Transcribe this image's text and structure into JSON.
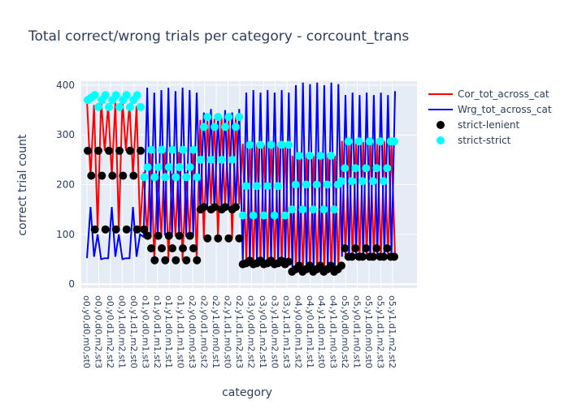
{
  "chart_data": {
    "type": "line",
    "title": "Total correct/wrong trials per category - corcount_trans",
    "xlabel": "category",
    "ylabel": "correct trial count",
    "ylim": [
      -8,
      408
    ],
    "yticks": [
      0,
      100,
      200,
      300,
      400
    ],
    "grid": true,
    "legend_position": "top-right",
    "colors": {
      "cor": "#ff0000",
      "wrg": "#0000ff",
      "strict_lenient": "#000000",
      "strict_strict": "#00ffff",
      "plot_bg": "#e5ecf6",
      "grid": "#ffffff",
      "text": "#2a3f5f"
    },
    "x_tick_labels": [
      "o0,y0,d0,m0,st0",
      "o0,y0,d0,m2,st3",
      "o0,y0,d1,m2,st2",
      "o0,y1,d0,m2,st1",
      "o0,y1,d1,m2,st0",
      "o1,y0,d0,m1,st3",
      "o1,y0,d1,m1,st2",
      "o1,y1,d0,m1,st1",
      "o1,y1,d1,m1,st0",
      "o2,y0,d0,m0,st3",
      "o2,y0,d1,m0,st2",
      "o2,y1,d0,m0,st1",
      "o2,y1,d1,m0,st0",
      "o2,y1,d1,m2,st3",
      "o3,y0,d0,m2,st2",
      "o3,y0,d1,m2,st1",
      "o3,y1,d0,m2,st0",
      "o3,y1,d1,m1,st3",
      "o4,y0,d0,m1,st2",
      "o4,y0,d1,m1,st1",
      "o4,y1,d0,m1,st0",
      "o4,y1,d1,m0,st3",
      "o5,y0,d0,m0,st2",
      "o5,y0,d1,m0,st1",
      "o5,y1,d0,m0,st0",
      "o5,y1,d1,m2,st3",
      "o5,y1,d1,m2,st2"
    ],
    "blocks": [
      {
        "n": 16,
        "cor": [
          [
            370,
            215
          ],
          [
            360,
            110
          ],
          [
            370,
            268
          ],
          [
            360,
            218
          ],
          [
            365,
            110
          ],
          [
            370,
            268
          ],
          [
            362,
            218
          ],
          [
            358,
            112
          ]
        ],
        "wrg": [
          [
            52,
            155
          ],
          [
            55,
            100
          ],
          [
            50,
            52
          ],
          [
            52,
            155
          ],
          [
            55,
            100
          ],
          [
            50,
            52
          ],
          [
            52,
            155
          ],
          [
            55,
            100
          ]
        ],
        "sl": [
          268,
          218,
          110,
          268,
          218,
          110,
          268,
          218,
          110,
          268,
          218,
          110,
          268,
          218,
          110,
          268
        ],
        "ss": [
          370,
          375,
          380,
          356,
          370,
          380,
          356,
          370,
          380,
          356,
          370,
          380,
          356,
          370,
          380,
          356
        ]
      },
      {
        "n": 16,
        "cor": [
          [
            225,
            95
          ],
          [
            265,
            48
          ],
          [
            220,
            98
          ],
          [
            268,
            50
          ],
          [
            222,
            96
          ],
          [
            266,
            48
          ],
          [
            225,
            97
          ],
          [
            268,
            50
          ]
        ],
        "wrg": [
          [
            95,
            395
          ],
          [
            98,
            385
          ],
          [
            95,
            390
          ],
          [
            98,
            395
          ],
          [
            95,
            388
          ],
          [
            98,
            395
          ],
          [
            95,
            390
          ],
          [
            98,
            385
          ]
        ],
        "sl": [
          110,
          97,
          72,
          48,
          97,
          72,
          48,
          97,
          72,
          48,
          97,
          72,
          48,
          97,
          72,
          48
        ],
        "ss": [
          215,
          235,
          270,
          215,
          235,
          270,
          215,
          235,
          270,
          215,
          235,
          270,
          215,
          235,
          270,
          215
        ]
      },
      {
        "n": 12,
        "cor": [
          [
            330,
            92
          ],
          [
            335,
            160
          ],
          [
            332,
            92
          ],
          [
            335,
            155
          ],
          [
            330,
            92
          ],
          [
            335,
            160
          ]
        ],
        "wrg": [
          [
            150,
            345
          ],
          [
            155,
            352
          ],
          [
            150,
            340
          ],
          [
            155,
            350
          ],
          [
            150,
            345
          ],
          [
            155,
            352
          ]
        ],
        "sl": [
          150,
          155,
          92,
          150,
          155,
          92,
          150,
          155,
          92,
          150,
          155,
          92
        ],
        "ss": [
          250,
          316,
          336,
          250,
          316,
          336,
          250,
          316,
          336,
          250,
          316,
          336
        ]
      },
      {
        "n": 14,
        "cor": [
          [
            282,
            45
          ],
          [
            278,
            40
          ],
          [
            282,
            45
          ],
          [
            280,
            42
          ],
          [
            282,
            45
          ],
          [
            278,
            40
          ],
          [
            282,
            45
          ]
        ],
        "wrg": [
          [
            45,
            385
          ],
          [
            40,
            390
          ],
          [
            45,
            385
          ],
          [
            40,
            390
          ],
          [
            45,
            385
          ],
          [
            40,
            390
          ],
          [
            45,
            385
          ]
        ],
        "sl": [
          40,
          42,
          47,
          40,
          42,
          47,
          40,
          42,
          47,
          40,
          42,
          47,
          40,
          45
        ],
        "ss": [
          138,
          197,
          280,
          138,
          197,
          280,
          138,
          197,
          280,
          138,
          197,
          280,
          138,
          280
        ]
      },
      {
        "n": 14,
        "cor": [
          [
            258,
            28
          ],
          [
            262,
            25
          ],
          [
            260,
            28
          ],
          [
            258,
            25
          ],
          [
            262,
            28
          ],
          [
            260,
            25
          ],
          [
            258,
            30
          ]
        ],
        "wrg": [
          [
            30,
            400
          ],
          [
            28,
            405
          ],
          [
            30,
            402
          ],
          [
            28,
            405
          ],
          [
            30,
            400
          ],
          [
            28,
            405
          ],
          [
            30,
            402
          ]
        ],
        "sl": [
          25,
          30,
          37,
          25,
          30,
          37,
          25,
          30,
          37,
          25,
          30,
          37,
          25,
          30
        ],
        "ss": [
          150,
          200,
          258,
          150,
          200,
          258,
          150,
          200,
          258,
          150,
          200,
          258,
          150,
          200
        ]
      },
      {
        "n": 16,
        "cor": [
          [
            288,
            55
          ],
          [
            285,
            55
          ],
          [
            288,
            55
          ],
          [
            286,
            55
          ],
          [
            288,
            55
          ],
          [
            285,
            55
          ],
          [
            288,
            55
          ],
          [
            286,
            55
          ]
        ],
        "wrg": [
          [
            55,
            380
          ],
          [
            55,
            385
          ],
          [
            55,
            380
          ],
          [
            55,
            385
          ],
          [
            55,
            380
          ],
          [
            55,
            385
          ],
          [
            55,
            380
          ],
          [
            55,
            388
          ]
        ],
        "sl": [
          37,
          72,
          55,
          55,
          72,
          55,
          55,
          72,
          55,
          55,
          72,
          55,
          55,
          72,
          55,
          55
        ],
        "ss": [
          207,
          233,
          287,
          207,
          233,
          287,
          207,
          233,
          287,
          207,
          233,
          287,
          207,
          233,
          287,
          287
        ]
      }
    ],
    "series": [
      {
        "name": "Cor_tot_across_cat",
        "kind": "line",
        "color": "#ff0000"
      },
      {
        "name": "Wrg_tot_across_cat",
        "kind": "line",
        "color": "#0000ff"
      },
      {
        "name": "strict-lenient",
        "kind": "markers",
        "color": "#000000"
      },
      {
        "name": "strict-strict",
        "kind": "markers",
        "color": "#00ffff"
      }
    ]
  }
}
